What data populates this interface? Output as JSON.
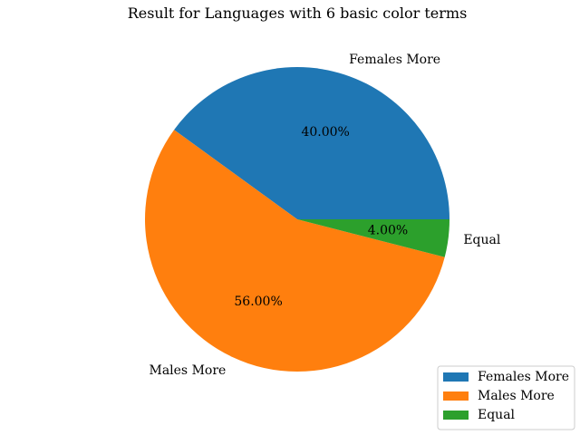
{
  "chart_data": {
    "type": "pie",
    "title": "Result for Languages with 6 basic color terms",
    "categories": [
      "Females More",
      "Males More",
      "Equal"
    ],
    "values": [
      40,
      56,
      4
    ],
    "percent_labels": [
      "40.00%",
      "56.00%",
      "4.00%"
    ],
    "colors": [
      "#1f77b4",
      "#ff7f0e",
      "#2ca02c"
    ],
    "start_angle_deg": 0,
    "direction": "counterclockwise",
    "legend": {
      "placement": "lower-right",
      "entries": [
        "Females More",
        "Males More",
        "Equal"
      ]
    }
  }
}
